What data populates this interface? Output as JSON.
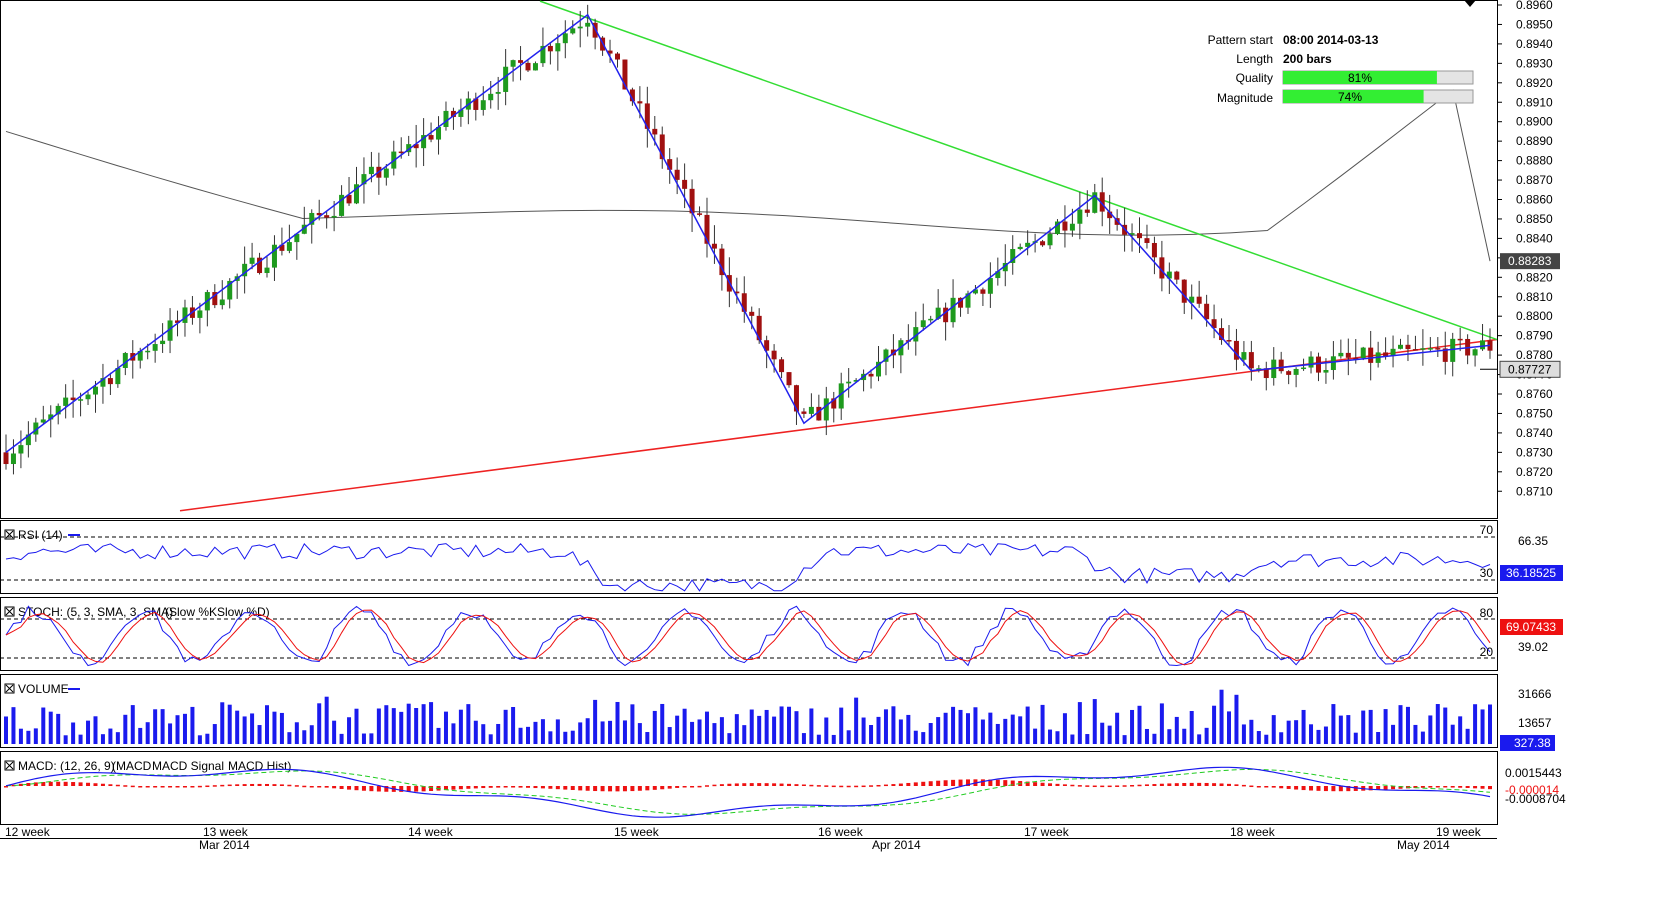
{
  "info": {
    "pattern_start_label": "Pattern start",
    "pattern_start_value": "08:00 2014-03-13",
    "length_label": "Length",
    "length_value": "200 bars",
    "quality_label": "Quality",
    "quality_value": 81,
    "quality_text": "81%",
    "magnitude_label": "Magnitude",
    "magnitude_value": 74,
    "magnitude_text": "74%"
  },
  "colors": {
    "bull": "#1e9a1e",
    "bear": "#a01010",
    "resistance": "#33dd33",
    "support": "#ee2222",
    "zigzag": "#2222ee",
    "ma": "#555555",
    "rsi": "#1a1aee",
    "stoch_k": "#1a1aee",
    "stoch_d": "#ee1111",
    "volume": "#1a1aee",
    "macd": "#1a1aee",
    "macd_signal": "#22cc22",
    "macd_hist": "#ee1111"
  },
  "chart_data": [
    {
      "type": "candlestick",
      "panel": "price",
      "ylim": [
        0.8705,
        0.896
      ],
      "yticks": [
        "0.8960",
        "0.8950",
        "0.8940",
        "0.8930",
        "0.8920",
        "0.8910",
        "0.8900",
        "0.8890",
        "0.8880",
        "0.8870",
        "0.8860",
        "0.8850",
        "0.8840",
        "0.8830",
        "0.8820",
        "0.8810",
        "0.8800",
        "0.8790",
        "0.8780",
        "0.8770",
        "0.8760",
        "0.8750",
        "0.8740",
        "0.8730",
        "0.8720",
        "0.8710"
      ],
      "current_price": "0.87727",
      "ma_label": "0.88283",
      "ma_value": 0.88283,
      "support_line": {
        "start": 0.87,
        "end": 0.8788
      },
      "resistance_line": {
        "start": 0.8962,
        "end": 0.8788
      },
      "zigzag": [
        0.873,
        0.8955,
        0.8745,
        0.8862,
        0.8772,
        0.8785
      ]
    },
    {
      "type": "line",
      "panel": "rsi",
      "title": "RSI (14)",
      "ylim": [
        20,
        80
      ],
      "levels": [
        "70",
        "30"
      ],
      "labels": [
        "66.35",
        "36.18525"
      ],
      "last": 36.18525
    },
    {
      "type": "line",
      "panel": "stoch",
      "title": "STOCH: (5, 3, SMA, 3, SMA)",
      "legend": [
        "(Slow %K",
        "Slow %D)"
      ],
      "levels": [
        "80",
        "20"
      ],
      "labels": [
        "39.02",
        "69.07433"
      ],
      "last": 69.07433
    },
    {
      "type": "bar",
      "panel": "volume",
      "title": "VOLUME",
      "labels": [
        "31666",
        "13657",
        "327.38"
      ],
      "last": 327.38
    },
    {
      "type": "line",
      "panel": "macd",
      "title": "MACD: (12, 26, 9)",
      "legend": [
        "(MACD",
        "MACD Signal",
        "MACD Hist)"
      ],
      "labels": [
        "0.0015443",
        "-0.000014",
        "-0.0008704"
      ]
    }
  ],
  "time_axis": {
    "weeks": [
      "12 week",
      "13 week",
      "14 week",
      "15 week",
      "16 week",
      "17 week",
      "18 week",
      "19 week"
    ],
    "months": [
      "Mar 2014",
      "Apr 2014",
      "May 2014"
    ]
  }
}
